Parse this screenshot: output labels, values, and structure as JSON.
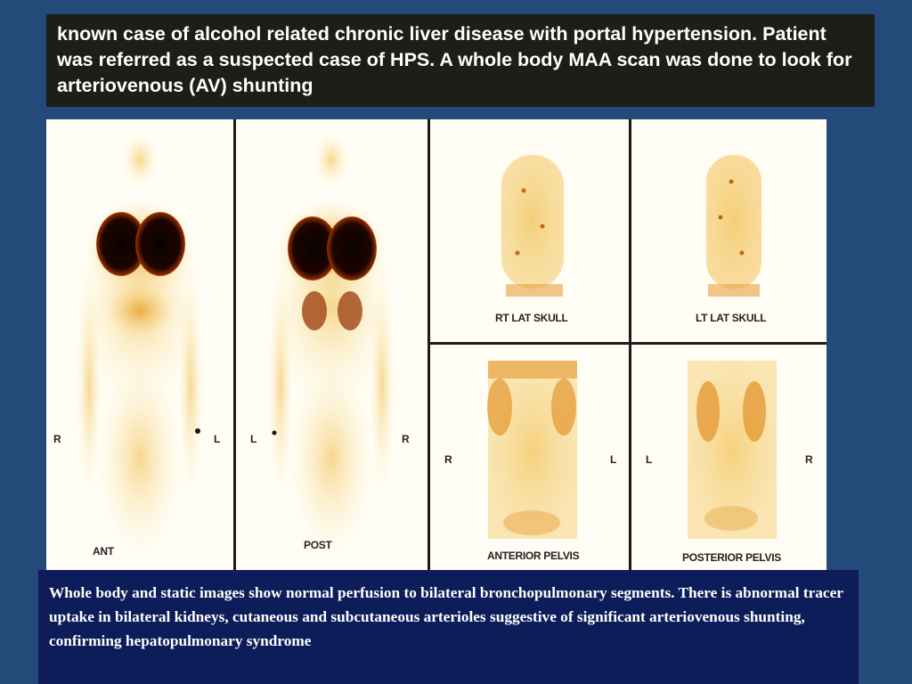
{
  "header": {
    "text": "known case of alcohol related chronic liver disease with portal hypertension. Patient was referred as a suspected case of HPS. A whole body MAA scan was done to look for arteriovenous (AV) shunting"
  },
  "figure": {
    "whole_body_anterior": {
      "view_label": "ANT",
      "left_marker": "R",
      "right_marker": "L"
    },
    "whole_body_posterior": {
      "view_label": "POST",
      "left_marker": "L",
      "right_marker": "R"
    },
    "rt_lat_skull": {
      "view_label": "RT LAT SKULL"
    },
    "lt_lat_skull": {
      "view_label": "LT LAT SKULL"
    },
    "anterior_pelvis": {
      "view_label": "ANTERIOR PELVIS",
      "left_marker": "R",
      "right_marker": "L"
    },
    "posterior_pelvis": {
      "view_label": "POSTERIOR PELVIS",
      "left_marker": "L",
      "right_marker": "R"
    }
  },
  "caption": {
    "text": "Whole body and static images show normal perfusion to bilateral bronchopulmonary segments. There is abnormal tracer uptake in bilateral kidneys, cutaneous and subcutaneous arterioles suggestive of significant arteriovenous shunting, confirming hepatopulmonary syndrome"
  },
  "colors": {
    "slide_background": "#234a78",
    "header_background": "#1f1d18",
    "caption_background": "#0d1d5a",
    "tracer_low": "#f7dc8a",
    "tracer_mid": "#e08a1a",
    "tracer_high": "#140400"
  }
}
